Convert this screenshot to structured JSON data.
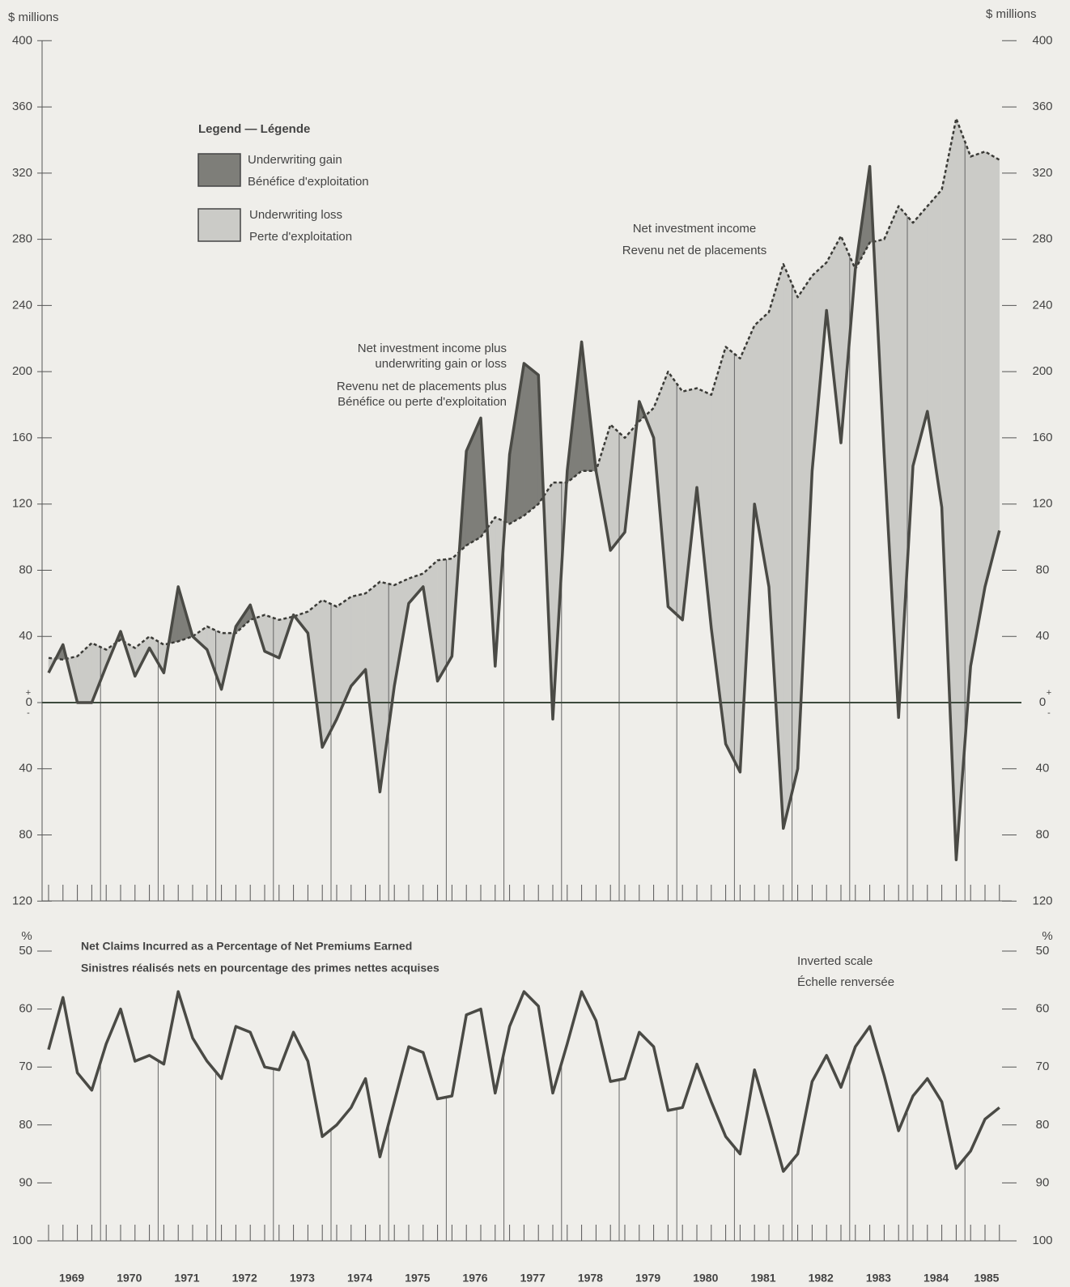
{
  "chart_data": [
    {
      "type": "band",
      "y_label": "$ millions",
      "ylim": [
        -120,
        400
      ],
      "yticks": [
        {
          "value": -120,
          "label": "120"
        },
        {
          "value": -80,
          "label": "80"
        },
        {
          "value": -40,
          "label": "40"
        },
        0,
        40,
        80,
        120,
        160,
        200,
        240,
        280,
        320,
        360,
        400
      ],
      "zero_signs": [
        "+",
        "-"
      ],
      "legend": {
        "title": "Legend — Légende",
        "items": [
          {
            "lines": [
              "Underwriting gain",
              "Bénéfice d'exploitation"
            ],
            "color": "#7e7e79"
          },
          {
            "lines": [
              "Underwriting loss",
              "Perte d'exploitation"
            ],
            "color": "#cbcbc7"
          }
        ]
      },
      "series": [
        {
          "label_lines": [
            "Net investment income",
            "Revenu net de placements"
          ],
          "color": "#3a3a36",
          "dashed": true,
          "values": [
            27,
            26,
            28,
            36,
            32,
            38,
            33,
            40,
            35,
            37,
            40,
            46,
            42,
            42,
            50,
            53,
            50,
            52,
            55,
            62,
            58,
            64,
            66,
            73,
            71,
            75,
            78,
            86,
            87,
            95,
            100,
            112,
            108,
            113,
            120,
            133,
            133,
            140,
            140,
            168,
            160,
            170,
            178,
            200,
            188,
            190,
            186,
            215,
            208,
            228,
            236,
            265,
            245,
            258,
            266,
            282,
            262,
            278,
            280,
            300,
            290,
            300,
            310,
            353,
            330,
            333,
            328
          ]
        },
        {
          "label_lines": [
            "Net investment income plus",
            "underwriting gain or loss",
            "Revenu net de placements plus",
            "Bénéfice ou perte d'exploitation"
          ],
          "color": "#4a4a45",
          "dashed": false,
          "values": [
            18,
            35,
            0,
            0,
            22,
            43,
            16,
            33,
            18,
            70,
            40,
            32,
            8,
            46,
            59,
            31,
            27,
            53,
            42,
            -27,
            -10,
            10,
            20,
            -54,
            10,
            60,
            70,
            13,
            28,
            152,
            172,
            22,
            150,
            205,
            198,
            -10,
            140,
            218,
            140,
            92,
            103,
            182,
            160,
            58,
            50,
            130,
            45,
            -25,
            -42,
            120,
            70,
            -76,
            -40,
            140,
            237,
            157,
            262,
            324,
            150,
            -9,
            143,
            176,
            118,
            -95,
            22,
            70,
            104
          ]
        }
      ]
    },
    {
      "type": "line",
      "title": "Net Claims Incurred as a Percentage of Net Premiums Earned",
      "subtitle": "Sinistres réalisés nets en pourcentage des primes nettes acquises",
      "y_label": "%",
      "note_lines": [
        "Inverted scale",
        "Échelle renversée"
      ],
      "inverted": true,
      "ylim": [
        50,
        100
      ],
      "yticks": [
        50,
        60,
        70,
        80,
        90,
        100
      ],
      "categories": [
        "1969",
        null,
        null,
        null,
        "1970",
        null,
        null,
        null,
        "1971",
        null,
        null,
        null,
        "1972",
        null,
        null,
        null,
        "1973",
        null,
        null,
        null,
        "1974",
        null,
        null,
        null,
        "1975",
        null,
        null,
        null,
        "1976",
        null,
        null,
        null,
        "1977",
        null,
        null,
        null,
        "1978",
        null,
        null,
        null,
        "1979",
        null,
        null,
        null,
        "1980",
        null,
        null,
        null,
        "1981",
        null,
        null,
        null,
        "1982",
        null,
        null,
        null,
        "1983",
        null,
        null,
        null,
        "1984",
        null,
        null,
        null,
        "1985",
        null,
        null
      ],
      "series": [
        {
          "color": "#4a4a45",
          "values": [
            67,
            58,
            71,
            74,
            66,
            60,
            69,
            68,
            69.5,
            57,
            65,
            69,
            72,
            63,
            64,
            70,
            70.5,
            64,
            69,
            82,
            80,
            77,
            72,
            85.5,
            76,
            66.5,
            67.5,
            75.5,
            75,
            61,
            60,
            74.5,
            63,
            57,
            59.5,
            74.5,
            66,
            57,
            62,
            72.5,
            72,
            64,
            66.5,
            77.5,
            77,
            69.5,
            76,
            82,
            85,
            70.5,
            79,
            88,
            85,
            72.5,
            68,
            73.5,
            66.5,
            63,
            71.5,
            81,
            75,
            72,
            76,
            87.5,
            84.5,
            79,
            77
          ]
        }
      ]
    }
  ]
}
